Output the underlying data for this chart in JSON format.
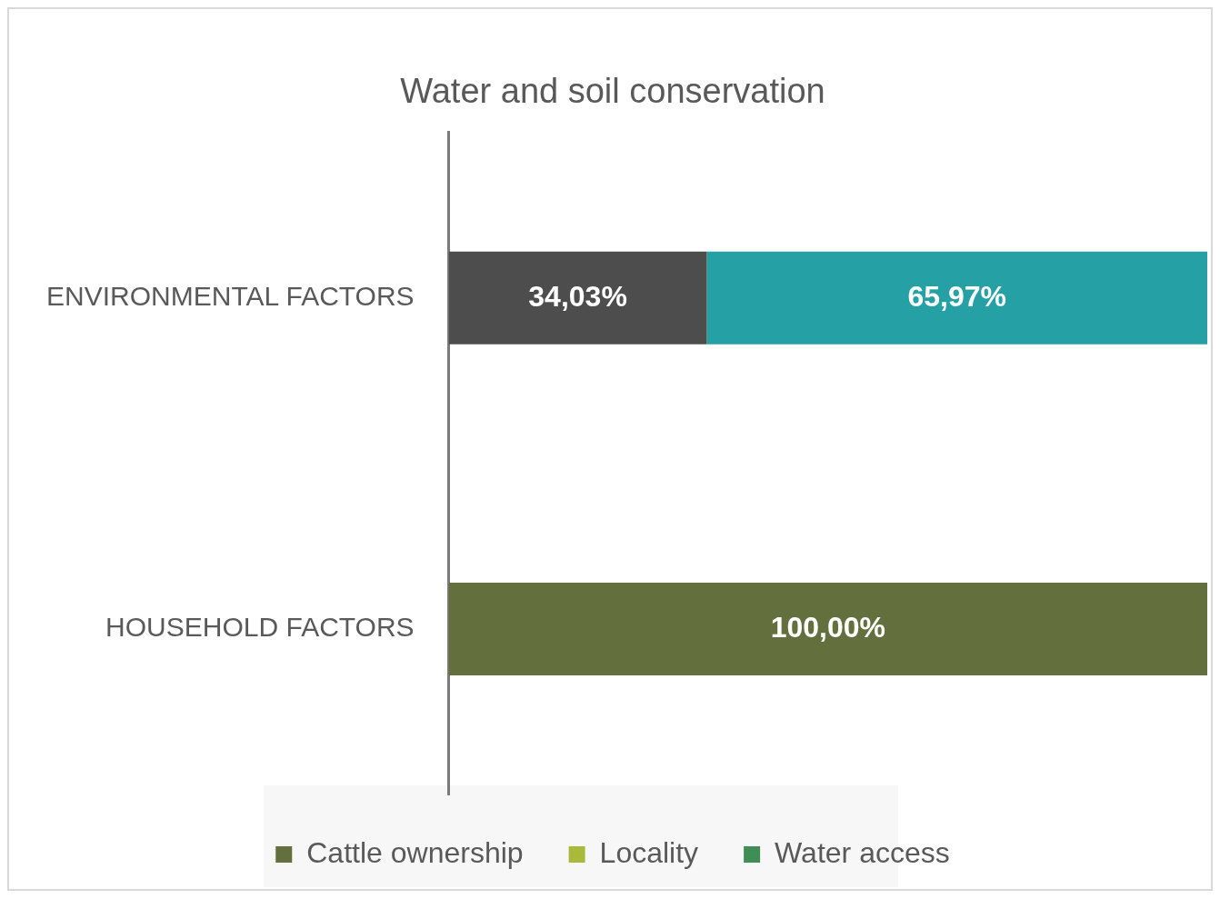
{
  "chart_data": {
    "type": "bar",
    "title": "Water and soil conservation",
    "orientation": "horizontal",
    "stacked": true,
    "categories": [
      "ENVIRONMENTAL FACTORS",
      "HOUSEHOLD FACTORS"
    ],
    "series": [
      {
        "name": "Cattle ownership",
        "color": "#636f3d",
        "values": [
          null,
          100
        ],
        "value_labels": [
          null,
          "100,00%"
        ]
      },
      {
        "name": "Locality",
        "color": "#a9ba3b",
        "values": [
          null,
          null
        ]
      },
      {
        "name": "Water access",
        "color": "#3e8e56",
        "values": [
          null,
          null
        ]
      },
      {
        "color": "#4d4d4d",
        "values": [
          34.03,
          null
        ],
        "value_labels": [
          "34,03%",
          null
        ]
      },
      {
        "color": "#25a1a6",
        "values": [
          65.97,
          null
        ],
        "value_labels": [
          "65,97%",
          null
        ]
      }
    ],
    "xlim": [
      0,
      100
    ],
    "tick_labels": "y",
    "legend": "bottom"
  }
}
